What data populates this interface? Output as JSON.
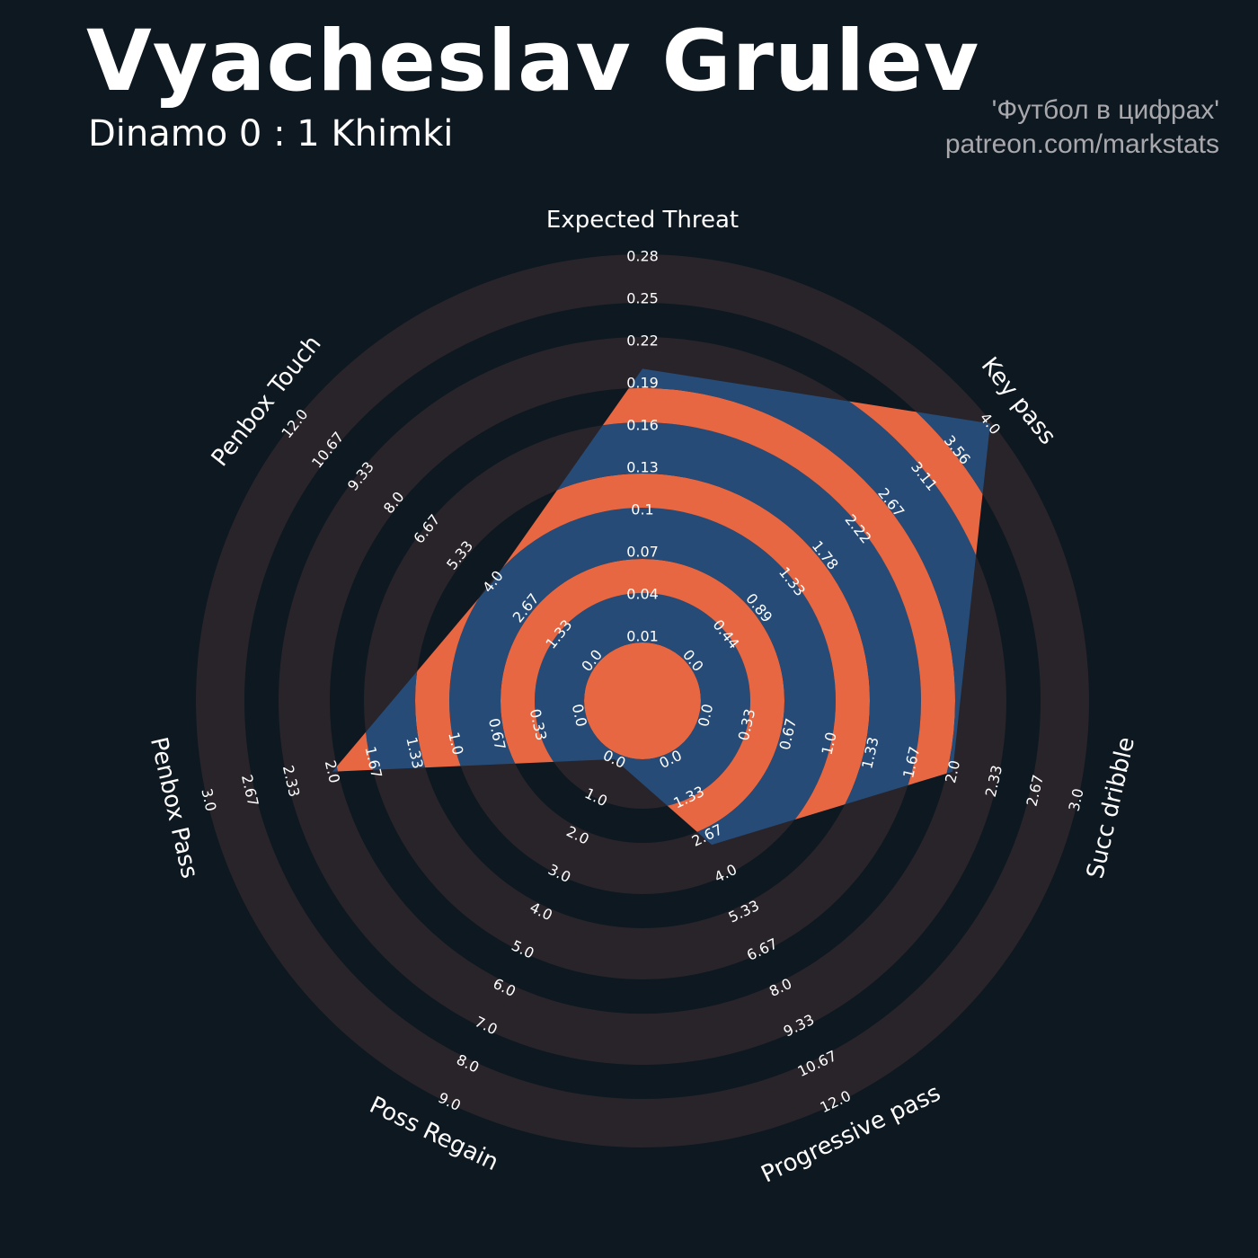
{
  "header": {
    "title": "Vyacheslav Grulev",
    "subtitle": "Dinamo 0 : 1 Khimki",
    "credit_line1": "'Футбол в цифрах'",
    "credit_line2": "patreon.com/markstats"
  },
  "colors": {
    "background": "#0e1820",
    "ring_gray": "#28242a",
    "fill_orange": "#e76742",
    "fill_blue": "#264b77",
    "text": "#ffffff",
    "credit": "#a9a9ad"
  },
  "chart_data": {
    "type": "radar",
    "params": [
      {
        "name": "Expected Threat",
        "value": 0.2,
        "range": [
          0.01,
          0.28
        ],
        "ticks": [
          "0.01",
          "0.04",
          "0.07",
          "0.1",
          "0.13",
          "0.16",
          "0.19",
          "0.22",
          "0.25",
          "0.28"
        ]
      },
      {
        "name": "Key pass",
        "value": 4.0,
        "range": [
          0.0,
          4.0
        ],
        "ticks": [
          "0.0",
          "0.44",
          "0.89",
          "1.33",
          "1.78",
          "2.22",
          "2.67",
          "3.11",
          "3.56",
          "4.0"
        ]
      },
      {
        "name": "Succ dribble",
        "value": 2.0,
        "range": [
          0.0,
          3.0
        ],
        "ticks": [
          "0.0",
          "0.33",
          "0.67",
          "1.0",
          "1.33",
          "1.67",
          "2.0",
          "2.33",
          "2.67",
          "3.0"
        ]
      },
      {
        "name": "Progressive pass",
        "value": 3.0,
        "range": [
          0.0,
          12.0
        ],
        "ticks": [
          "0.0",
          "1.33",
          "2.67",
          "4.0",
          "5.33",
          "6.67",
          "8.0",
          "9.33",
          "10.67",
          "12.0"
        ]
      },
      {
        "name": "Poss Regain",
        "value": 0.0,
        "range": [
          0.0,
          9.0
        ],
        "ticks": [
          "0.0",
          "1.0",
          "2.0",
          "3.0",
          "4.0",
          "5.0",
          "6.0",
          "7.0",
          "8.0",
          "9.0"
        ]
      },
      {
        "name": "Penbox Pass",
        "value": 2.0,
        "range": [
          0.0,
          3.0
        ],
        "ticks": [
          "0.0",
          "0.33",
          "0.67",
          "1.0",
          "1.33",
          "1.67",
          "2.0",
          "2.33",
          "2.67",
          "3.0"
        ]
      },
      {
        "name": "Penbox Touch",
        "value": 4.0,
        "range": [
          0.0,
          12.0
        ],
        "ticks": [
          "0.0",
          "1.33",
          "2.67",
          "4.0",
          "5.33",
          "6.67",
          "8.0",
          "9.33",
          "10.67",
          "12.0"
        ]
      }
    ]
  }
}
